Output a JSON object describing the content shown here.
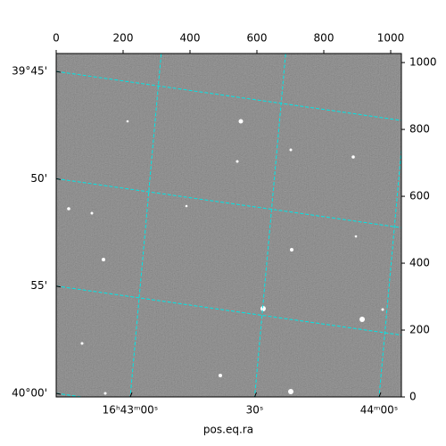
{
  "chart_data": {
    "type": "image",
    "xlabel": "pos.eq.ra",
    "xlim": [
      0,
      1032
    ],
    "xticks": [
      0,
      200,
      400,
      600,
      800,
      1000
    ],
    "ylim": [
      0,
      1027
    ],
    "yticks": [
      0,
      200,
      400,
      600,
      800,
      1000
    ],
    "ra_lim": [
      2562.15,
      2645.38
    ],
    "ra_ticks": [
      {
        "value": 2580,
        "label": "16ʰ43ᵐ00ˢ"
      },
      {
        "value": 2610,
        "label": "30ˢ"
      },
      {
        "value": 2640,
        "label": "44ᵐ00ˢ"
      }
    ],
    "dec_lim": [
      39.7361,
      40.0028
    ],
    "dec_ticks": [
      {
        "value": 39.75,
        "label": "39°45'"
      },
      {
        "value": 39.8333,
        "label": "50'"
      },
      {
        "value": 39.9167,
        "label": "55'"
      },
      {
        "value": 40.0,
        "label": "40°00'"
      }
    ],
    "grid": true,
    "grid_color": "#00e5e5"
  }
}
